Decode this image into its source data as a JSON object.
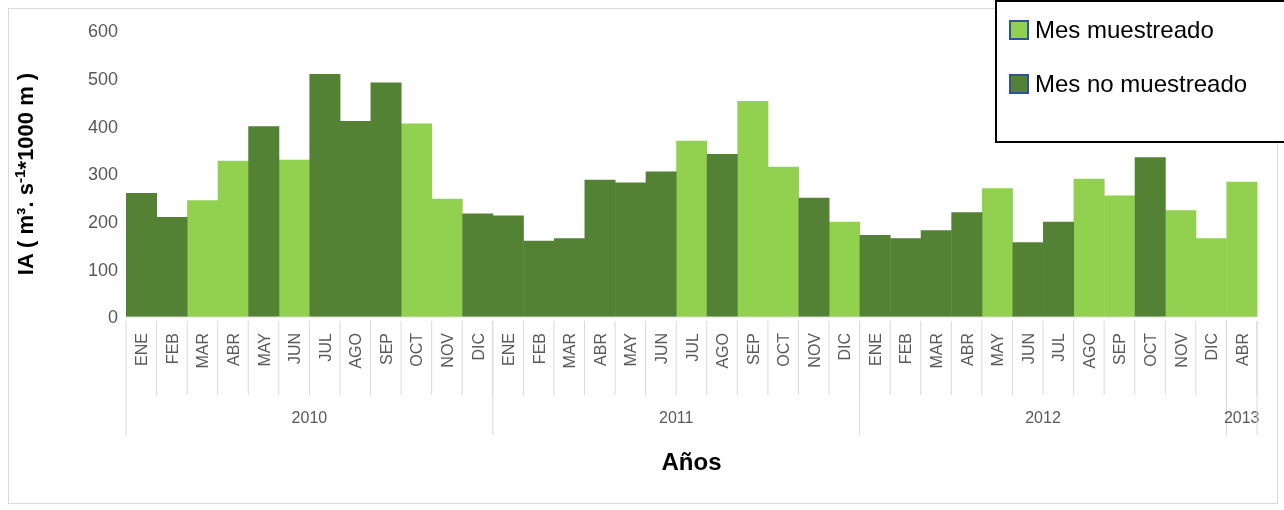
{
  "chart_data": {
    "type": "bar",
    "stacked": true,
    "xlabel": "Años",
    "ylabel": "IA ( m³. s$^{-1}$*1000 m )",
    "categories": [
      "ENE",
      "FEB",
      "MAR",
      "ABR",
      "MAY",
      "JUN",
      "JUL",
      "AGO",
      "SEP",
      "OCT",
      "NOV",
      "DIC",
      "ENE",
      "FEB",
      "MAR",
      "ABR",
      "MAY",
      "JUN",
      "JUL",
      "AGO",
      "SEP",
      "OCT",
      "NOV",
      "DIC",
      "ENE",
      "FEB",
      "MAR",
      "ABR",
      "MAY",
      "JUN",
      "JUL",
      "AGO",
      "SEP",
      "OCT",
      "NOV",
      "DIC",
      "ABR"
    ],
    "series": [
      {
        "name": "Mes muestreado",
        "color": "#92d050",
        "values": [
          null,
          null,
          245,
          328,
          null,
          330,
          null,
          null,
          null,
          406,
          248,
          null,
          null,
          null,
          null,
          null,
          null,
          null,
          370,
          null,
          453,
          315,
          null,
          200,
          null,
          null,
          null,
          null,
          270,
          null,
          null,
          290,
          255,
          null,
          224,
          165,
          284
        ]
      },
      {
        "name": "Mes no muestreado",
        "color": "#548235",
        "values": [
          260,
          210,
          null,
          null,
          400,
          null,
          510,
          411,
          492,
          null,
          null,
          217,
          213,
          160,
          165,
          288,
          282,
          305,
          null,
          342,
          null,
          null,
          250,
          null,
          172,
          165,
          182,
          220,
          null,
          157,
          200,
          null,
          null,
          335,
          null,
          null,
          null
        ]
      }
    ],
    "ylim": [
      0,
      600
    ],
    "yticks": [
      0,
      100,
      200,
      300,
      400,
      500,
      600
    ],
    "legend": "top right",
    "annotations": [
      "2010",
      "2011",
      "2012",
      "2013"
    ]
  }
}
